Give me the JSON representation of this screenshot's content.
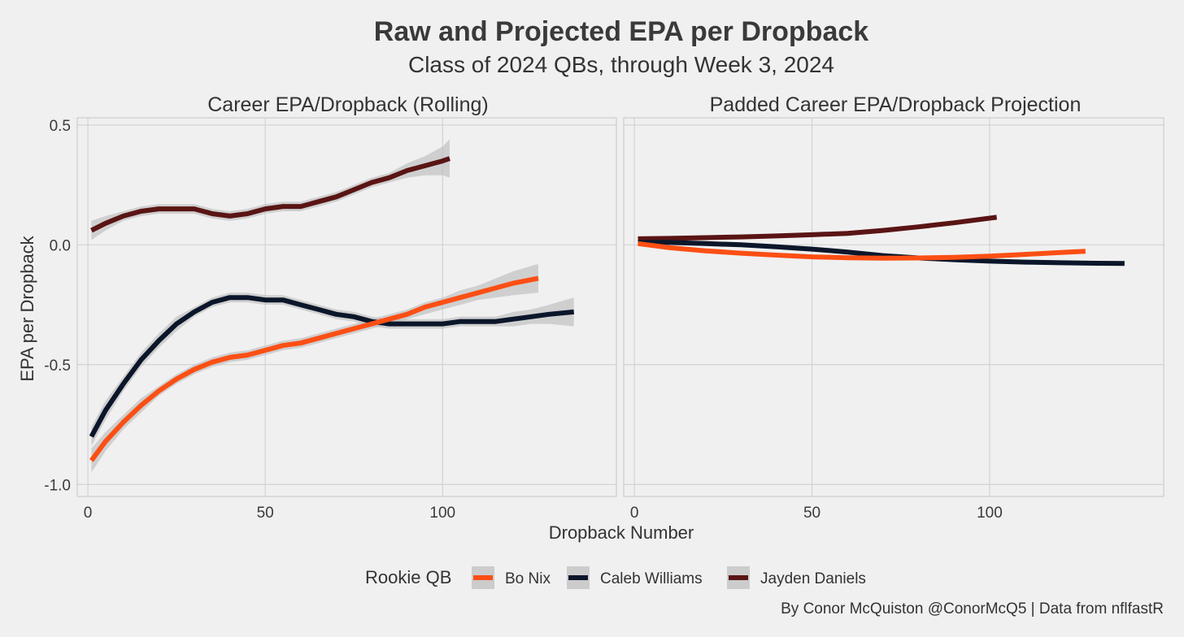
{
  "chart_data": {
    "type": "line",
    "title": "Raw and Projected EPA per Dropback",
    "subtitle": "Class of 2024 QBs, through Week 3, 2024",
    "xlabel": "Dropback Number",
    "ylabel": "EPA per Dropback",
    "caption": "By Conor McQuiston @ConorMcQ5 | Data from nflfastR",
    "xlim": [
      -3,
      149
    ],
    "ylim": [
      -1.05,
      0.53
    ],
    "xticks": [
      0,
      50,
      100
    ],
    "xtick_labels": [
      "0",
      "50",
      "100"
    ],
    "yticks": [
      0.5,
      0.0,
      -0.5,
      -1.0
    ],
    "ytick_labels": [
      "0.5",
      "0.0",
      "-0.5",
      "-1.0"
    ],
    "grid": true,
    "legend": {
      "title": "Rookie QB",
      "position": "bottom",
      "entries": [
        "Bo Nix",
        "Caleb Williams",
        "Jayden Daniels"
      ]
    },
    "colors": {
      "Bo Nix": "#fb4f14",
      "Caleb Williams": "#0b162a",
      "Jayden Daniels": "#5a1414",
      "band": "#bcbcbc",
      "background": "#f0f0f0"
    },
    "facets": [
      {
        "title": "Career EPA/Dropback (Rolling)",
        "series": [
          {
            "name": "Jayden Daniels",
            "x": [
              1,
              5,
              10,
              15,
              20,
              25,
              30,
              35,
              40,
              45,
              50,
              55,
              60,
              65,
              70,
              75,
              80,
              85,
              90,
              95,
              100,
              102
            ],
            "y": [
              0.06,
              0.09,
              0.12,
              0.14,
              0.15,
              0.15,
              0.15,
              0.13,
              0.12,
              0.13,
              0.15,
              0.16,
              0.16,
              0.18,
              0.2,
              0.23,
              0.26,
              0.28,
              0.31,
              0.33,
              0.35,
              0.36
            ],
            "lower": [
              0.02,
              0.06,
              0.1,
              0.12,
              0.13,
              0.13,
              0.13,
              0.11,
              0.1,
              0.11,
              0.13,
              0.14,
              0.14,
              0.16,
              0.18,
              0.21,
              0.24,
              0.26,
              0.28,
              0.29,
              0.29,
              0.28
            ],
            "upper": [
              0.1,
              0.12,
              0.14,
              0.16,
              0.17,
              0.17,
              0.17,
              0.15,
              0.14,
              0.15,
              0.17,
              0.18,
              0.18,
              0.2,
              0.22,
              0.25,
              0.28,
              0.3,
              0.34,
              0.37,
              0.41,
              0.44
            ]
          },
          {
            "name": "Caleb Williams",
            "x": [
              1,
              5,
              10,
              15,
              20,
              25,
              30,
              35,
              40,
              45,
              50,
              55,
              60,
              65,
              70,
              75,
              80,
              85,
              90,
              95,
              100,
              105,
              110,
              115,
              120,
              125,
              130,
              137
            ],
            "y": [
              -0.8,
              -0.69,
              -0.58,
              -0.48,
              -0.4,
              -0.33,
              -0.28,
              -0.24,
              -0.22,
              -0.22,
              -0.23,
              -0.23,
              -0.25,
              -0.27,
              -0.29,
              -0.3,
              -0.32,
              -0.33,
              -0.33,
              -0.33,
              -0.33,
              -0.32,
              -0.32,
              -0.32,
              -0.31,
              -0.3,
              -0.29,
              -0.28
            ],
            "lower": [
              -0.84,
              -0.73,
              -0.61,
              -0.51,
              -0.43,
              -0.36,
              -0.3,
              -0.26,
              -0.24,
              -0.24,
              -0.25,
              -0.25,
              -0.27,
              -0.29,
              -0.31,
              -0.32,
              -0.34,
              -0.35,
              -0.35,
              -0.35,
              -0.35,
              -0.34,
              -0.34,
              -0.34,
              -0.34,
              -0.33,
              -0.33,
              -0.34
            ],
            "upper": [
              -0.76,
              -0.65,
              -0.55,
              -0.45,
              -0.37,
              -0.3,
              -0.26,
              -0.22,
              -0.2,
              -0.2,
              -0.21,
              -0.21,
              -0.23,
              -0.25,
              -0.27,
              -0.28,
              -0.3,
              -0.31,
              -0.31,
              -0.31,
              -0.31,
              -0.3,
              -0.3,
              -0.3,
              -0.28,
              -0.27,
              -0.25,
              -0.22
            ]
          },
          {
            "name": "Bo Nix",
            "x": [
              1,
              5,
              10,
              15,
              20,
              25,
              30,
              35,
              40,
              45,
              50,
              55,
              60,
              65,
              70,
              75,
              80,
              85,
              90,
              95,
              100,
              105,
              110,
              115,
              120,
              127
            ],
            "y": [
              -0.9,
              -0.82,
              -0.74,
              -0.67,
              -0.61,
              -0.56,
              -0.52,
              -0.49,
              -0.47,
              -0.46,
              -0.44,
              -0.42,
              -0.41,
              -0.39,
              -0.37,
              -0.35,
              -0.33,
              -0.31,
              -0.29,
              -0.26,
              -0.24,
              -0.22,
              -0.2,
              -0.18,
              -0.16,
              -0.14
            ],
            "lower": [
              -0.95,
              -0.86,
              -0.77,
              -0.7,
              -0.63,
              -0.58,
              -0.54,
              -0.51,
              -0.49,
              -0.48,
              -0.46,
              -0.44,
              -0.43,
              -0.41,
              -0.39,
              -0.37,
              -0.35,
              -0.33,
              -0.31,
              -0.29,
              -0.27,
              -0.25,
              -0.23,
              -0.22,
              -0.21,
              -0.2
            ],
            "upper": [
              -0.85,
              -0.78,
              -0.71,
              -0.64,
              -0.59,
              -0.54,
              -0.5,
              -0.47,
              -0.45,
              -0.44,
              -0.42,
              -0.4,
              -0.39,
              -0.37,
              -0.35,
              -0.33,
              -0.31,
              -0.29,
              -0.27,
              -0.24,
              -0.22,
              -0.19,
              -0.17,
              -0.14,
              -0.11,
              -0.08
            ]
          }
        ]
      },
      {
        "title": "Padded Career EPA/Dropback Projection",
        "series": [
          {
            "name": "Jayden Daniels",
            "x": [
              1,
              10,
              20,
              30,
              40,
              50,
              60,
              70,
              80,
              90,
              102
            ],
            "y": [
              0.025,
              0.027,
              0.03,
              0.033,
              0.037,
              0.042,
              0.048,
              0.06,
              0.075,
              0.092,
              0.115
            ]
          },
          {
            "name": "Caleb Williams",
            "x": [
              1,
              10,
              20,
              30,
              40,
              50,
              60,
              70,
              80,
              90,
              100,
              110,
              120,
              130,
              138
            ],
            "y": [
              0.01,
              0.01,
              0.005,
              0.0,
              -0.008,
              -0.018,
              -0.03,
              -0.045,
              -0.055,
              -0.062,
              -0.068,
              -0.072,
              -0.075,
              -0.077,
              -0.078
            ]
          },
          {
            "name": "Bo Nix",
            "x": [
              1,
              10,
              20,
              30,
              40,
              50,
              60,
              70,
              80,
              90,
              100,
              110,
              120,
              127
            ],
            "y": [
              0.005,
              -0.012,
              -0.025,
              -0.035,
              -0.043,
              -0.05,
              -0.054,
              -0.056,
              -0.055,
              -0.052,
              -0.047,
              -0.04,
              -0.032,
              -0.027
            ]
          }
        ]
      }
    ]
  }
}
